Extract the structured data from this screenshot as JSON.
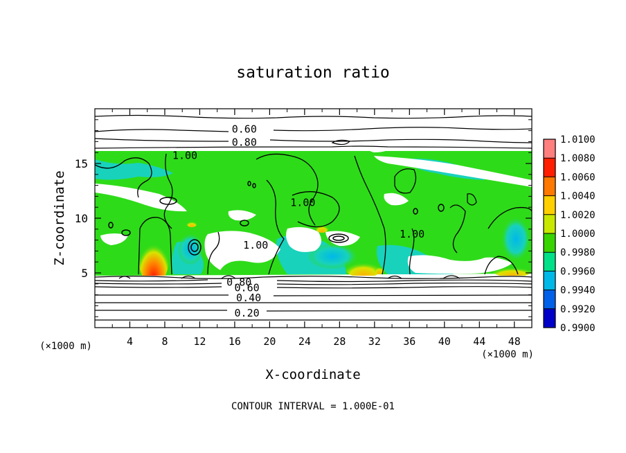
{
  "chart_data": {
    "type": "heatmap",
    "title": "saturation ratio",
    "xlabel": "X-coordinate",
    "ylabel": "Z-coordinate",
    "x_unit": "(×1000 m)",
    "z_unit": "(×1000 m)",
    "xlim": [
      0,
      50
    ],
    "ylim": [
      0,
      20
    ],
    "x_ticks": [
      4,
      8,
      12,
      16,
      20,
      24,
      28,
      32,
      36,
      40,
      44,
      48
    ],
    "y_ticks": [
      5,
      10,
      15
    ],
    "footnote": "CONTOUR INTERVAL = 1.000E-01",
    "contour_labels": [
      {
        "text": "0.60",
        "x": 17.1,
        "z": 18.2
      },
      {
        "text": "0.80",
        "x": 17.1,
        "z": 17.0
      },
      {
        "text": "1.00",
        "x": 10.3,
        "z": 15.8
      },
      {
        "text": "1.00",
        "x": 23.8,
        "z": 11.5
      },
      {
        "text": "1.00",
        "x": 36.3,
        "z": 8.6
      },
      {
        "text": "1.00",
        "x": 18.4,
        "z": 7.6
      },
      {
        "text": "0.80",
        "x": 16.5,
        "z": 4.2
      },
      {
        "text": "0.60",
        "x": 17.4,
        "z": 3.7
      },
      {
        "text": "0.40",
        "x": 17.6,
        "z": 2.8
      },
      {
        "text": "0.20",
        "x": 17.4,
        "z": 1.4
      }
    ],
    "colorbar": {
      "levels": [
        "1.0100",
        "1.0080",
        "1.0060",
        "1.0040",
        "1.0020",
        "1.0000",
        "0.9980",
        "0.9960",
        "0.9940",
        "0.9920",
        "0.9900"
      ],
      "colors": [
        "#ff7f7f",
        "#ff1f00",
        "#ff7800",
        "#ffcf00",
        "#c8e800",
        "#38d400",
        "#00e088",
        "#00b8e8",
        "#0060e8",
        "#0000c8",
        "#5800b8"
      ]
    },
    "field_colors": {
      "near_saturation": "#2edb19",
      "subsaturated": "#ffffff",
      "slightly_sub": "#18d2bc",
      "supersat_max": "#ff1a00",
      "supersat_mid": "#ffd000"
    }
  }
}
